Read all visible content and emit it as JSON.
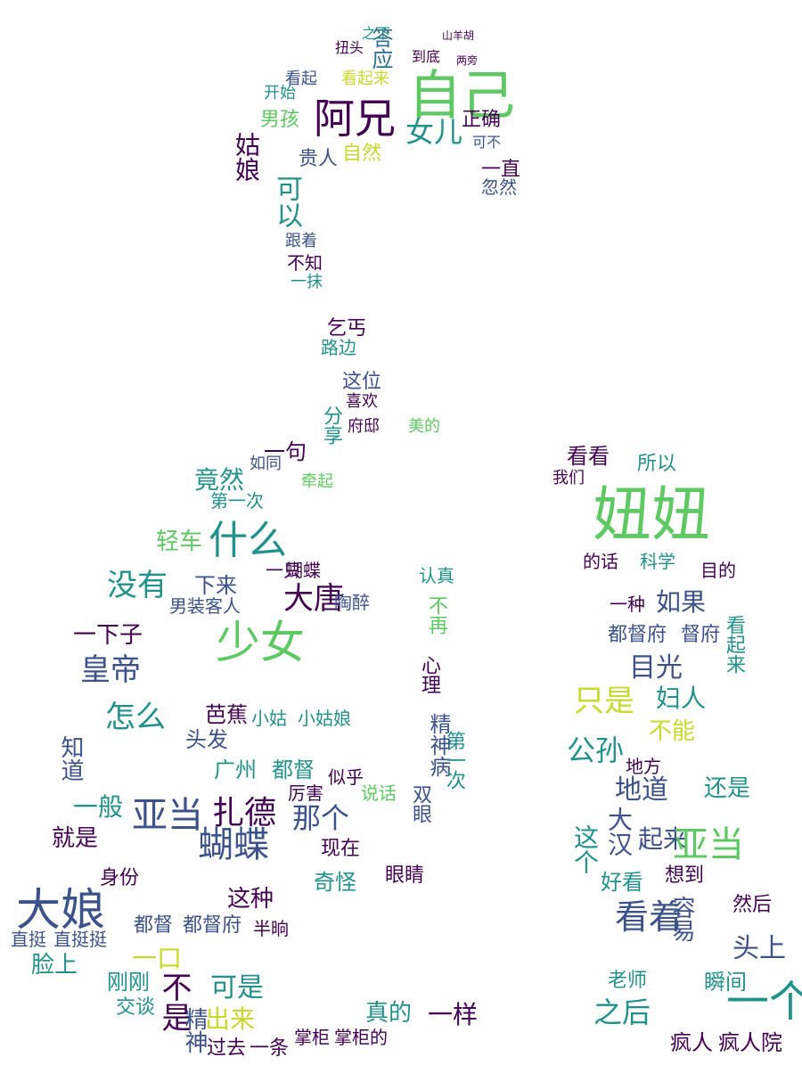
{
  "words": [
    {
      "text": "自己",
      "color": "#5ec962"
    },
    {
      "text": "阿兄",
      "color": "#440154"
    },
    {
      "text": "女儿",
      "color": "#21918c"
    },
    {
      "text": "看起来",
      "color": "#c8d92b"
    },
    {
      "text": "看起",
      "color": "#3b528b"
    },
    {
      "text": "答应",
      "color": "#2c728e"
    },
    {
      "text": "男孩",
      "color": "#5ec962"
    },
    {
      "text": "姑娘",
      "color": "#440154"
    },
    {
      "text": "贵人",
      "color": "#3b528b"
    },
    {
      "text": "自然",
      "color": "#c8d92b"
    },
    {
      "text": "正确",
      "color": "#440154"
    },
    {
      "text": "可以",
      "color": "#21918c"
    },
    {
      "text": "一直",
      "color": "#440154"
    },
    {
      "text": "忽然",
      "color": "#3b528b"
    },
    {
      "text": "不知",
      "color": "#440154"
    },
    {
      "text": "跟着",
      "color": "#3b528b"
    },
    {
      "text": "一抹",
      "color": "#21918c"
    },
    {
      "text": "乞丐",
      "color": "#440154"
    },
    {
      "text": "路边",
      "color": "#21918c"
    },
    {
      "text": "这位",
      "color": "#3b528b"
    },
    {
      "text": "喜欢",
      "color": "#440154"
    },
    {
      "text": "分享",
      "color": "#21918c"
    },
    {
      "text": "府邸",
      "color": "#440154"
    },
    {
      "text": "美的",
      "color": "#5ec962"
    },
    {
      "text": "一句",
      "color": "#440154"
    },
    {
      "text": "竟然",
      "color": "#21918c"
    },
    {
      "text": "如同",
      "color": "#3b528b"
    },
    {
      "text": "第一次",
      "color": "#21918c"
    },
    {
      "text": "牵起",
      "color": "#5ec962"
    },
    {
      "text": "什么",
      "color": "#21918c"
    },
    {
      "text": "轻车",
      "color": "#5ec962"
    },
    {
      "text": "没有",
      "color": "#21918c"
    },
    {
      "text": "大唐",
      "color": "#440154"
    },
    {
      "text": "下来",
      "color": "#3b528b"
    },
    {
      "text": "一只",
      "color": "#440154"
    },
    {
      "text": "蝴蝶",
      "color": "#440154"
    },
    {
      "text": "陶醉",
      "color": "#3b528b"
    },
    {
      "text": "少女",
      "color": "#5ec962"
    },
    {
      "text": "男装客人",
      "color": "#3b528b"
    },
    {
      "text": "一下子",
      "color": "#440154"
    },
    {
      "text": "皇帝",
      "color": "#3b528b"
    },
    {
      "text": "怎么",
      "color": "#21918c"
    },
    {
      "text": "芭蕉",
      "color": "#440154"
    },
    {
      "text": "小姑",
      "color": "#21918c"
    },
    {
      "text": "小姑娘",
      "color": "#21918c"
    },
    {
      "text": "头发",
      "color": "#3b528b"
    },
    {
      "text": "广州",
      "color": "#21918c"
    },
    {
      "text": "都督",
      "color": "#21918c"
    },
    {
      "text": "厉害",
      "color": "#440154"
    },
    {
      "text": "似乎",
      "color": "#440154"
    },
    {
      "text": "说话",
      "color": "#5ec962"
    },
    {
      "text": "亚当",
      "color": "#3b528b"
    },
    {
      "text": "扎德",
      "color": "#440154"
    },
    {
      "text": "那个",
      "color": "#3b528b"
    },
    {
      "text": "现在",
      "color": "#440154"
    },
    {
      "text": "一般",
      "color": "#21918c"
    },
    {
      "text": "就是",
      "color": "#440154"
    },
    {
      "text": "知道",
      "color": "#3b528b"
    },
    {
      "text": "大娘",
      "color": "#3b528b"
    },
    {
      "text": "蝴蝶",
      "color": "#3b528b"
    },
    {
      "text": "身份",
      "color": "#440154"
    },
    {
      "text": "这种",
      "color": "#440154"
    },
    {
      "text": "奇怪",
      "color": "#21918c"
    },
    {
      "text": "都督",
      "color": "#3b528b"
    },
    {
      "text": "都督府",
      "color": "#3b528b"
    },
    {
      "text": "半晌",
      "color": "#440154"
    },
    {
      "text": "脸上",
      "color": "#21918c"
    },
    {
      "text": "直挺",
      "color": "#3b528b"
    },
    {
      "text": "直挺挺",
      "color": "#3b528b"
    },
    {
      "text": "一口",
      "color": "#c8d92b"
    },
    {
      "text": "不是",
      "color": "#440154"
    },
    {
      "text": "可是",
      "color": "#21918c"
    },
    {
      "text": "刚刚",
      "color": "#21918c"
    },
    {
      "text": "出来",
      "color": "#c8d92b"
    },
    {
      "text": "交谈",
      "color": "#21918c"
    },
    {
      "text": "真的",
      "color": "#21918c"
    },
    {
      "text": "一样",
      "color": "#440154"
    },
    {
      "text": "掌柜",
      "color": "#440154"
    },
    {
      "text": "掌柜的",
      "color": "#440154"
    },
    {
      "text": "过去",
      "color": "#440154"
    },
    {
      "text": "一条",
      "color": "#440154"
    },
    {
      "text": "精神",
      "color": "#3b528b"
    },
    {
      "text": "心理",
      "color": "#440154"
    },
    {
      "text": "精神病",
      "color": "#3b528b"
    },
    {
      "text": "第一次",
      "color": "#21918c"
    },
    {
      "text": "双眼",
      "color": "#3b528b"
    },
    {
      "text": "眼睛",
      "color": "#440154"
    },
    {
      "text": "认真",
      "color": "#21918c"
    },
    {
      "text": "不再",
      "color": "#5ec962"
    },
    {
      "text": "妞妞",
      "color": "#5ec962"
    },
    {
      "text": "看看",
      "color": "#440154"
    },
    {
      "text": "所以",
      "color": "#21918c"
    },
    {
      "text": "我们",
      "color": "#440154"
    },
    {
      "text": "科学",
      "color": "#21918c"
    },
    {
      "text": "目的",
      "color": "#440154"
    },
    {
      "text": "的话",
      "color": "#440154"
    },
    {
      "text": "如果",
      "color": "#3b528b"
    },
    {
      "text": "一种",
      "color": "#440154"
    },
    {
      "text": "都督府",
      "color": "#3b528b"
    },
    {
      "text": "督府",
      "color": "#3b528b"
    },
    {
      "text": "目光",
      "color": "#3b528b"
    },
    {
      "text": "妇人",
      "color": "#21918c"
    },
    {
      "text": "只是",
      "color": "#c8d92b"
    },
    {
      "text": "看起来",
      "color": "#21918c"
    },
    {
      "text": "不能",
      "color": "#c8d92b"
    },
    {
      "text": "公孙",
      "color": "#21918c"
    },
    {
      "text": "地方",
      "color": "#440154"
    },
    {
      "text": "地道",
      "color": "#3b528b"
    },
    {
      "text": "还是",
      "color": "#21918c"
    },
    {
      "text": "起来",
      "color": "#3b528b"
    },
    {
      "text": "这个",
      "color": "#21918c"
    },
    {
      "text": "大汉",
      "color": "#3b528b"
    },
    {
      "text": "亚当",
      "color": "#5ec962"
    },
    {
      "text": "好看",
      "color": "#21918c"
    },
    {
      "text": "想到",
      "color": "#440154"
    },
    {
      "text": "看着",
      "color": "#3b528b"
    },
    {
      "text": "容易",
      "color": "#3b528b"
    },
    {
      "text": "头上",
      "color": "#3b528b"
    },
    {
      "text": "然后",
      "color": "#440154"
    },
    {
      "text": "之后",
      "color": "#21918c"
    },
    {
      "text": "老师",
      "color": "#21918c"
    },
    {
      "text": "一个",
      "color": "#21918c"
    },
    {
      "text": "疯人",
      "color": "#440154"
    },
    {
      "text": "疯人院",
      "color": "#440154"
    },
    {
      "text": "瞬间",
      "color": "#21918c"
    },
    {
      "text": "可不",
      "color": "#3b528b"
    },
    {
      "text": "开始",
      "color": "#21918c"
    },
    {
      "text": "扭头",
      "color": "#440154"
    },
    {
      "text": "到底",
      "color": "#440154"
    },
    {
      "text": "之下",
      "color": "#21918c"
    },
    {
      "text": "山羊胡",
      "color": "#440154"
    },
    {
      "text": "两旁",
      "color": "#440154"
    }
  ]
}
